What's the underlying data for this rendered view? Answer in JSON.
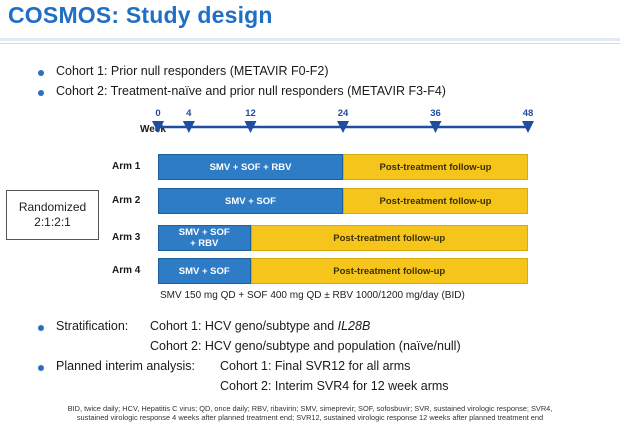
{
  "title": "COSMOS: Study design",
  "bullets": {
    "cohort1": "Cohort 1: Prior null responders (METAVIR F0-F2)",
    "cohort2": "Cohort 2: Treatment-naïve and prior null responders (METAVIR F3-F4)"
  },
  "timeline": {
    "label": "Week",
    "ticks": [
      "0",
      "4",
      "12",
      "24",
      "36",
      "48"
    ],
    "color": "#1f4ea0"
  },
  "arms": [
    {
      "label": "Arm 1",
      "treatment": "SMV + SOF + RBV",
      "followup": "Post-treatment follow-up",
      "treatment_weeks": 24
    },
    {
      "label": "Arm 2",
      "treatment": "SMV + SOF",
      "followup": "Post-treatment follow-up",
      "treatment_weeks": 24
    },
    {
      "label": "Arm 3",
      "treatment_line1": "SMV + SOF",
      "treatment_line2": "+ RBV",
      "followup": "Post-treatment follow-up",
      "treatment_weeks": 12
    },
    {
      "label": "Arm 4",
      "treatment": "SMV + SOF",
      "followup": "Post-treatment follow-up",
      "treatment_weeks": 12
    }
  ],
  "randomized": {
    "line1": "Randomized",
    "line2": "2:1:2:1"
  },
  "dosing": "SMV 150 mg QD + SOF 400 mg QD ± RBV 1000/1200 mg/day (BID)",
  "stratification": {
    "label": "Stratification:",
    "cohort1_prefix": "Cohort 1: HCV geno/subtype and ",
    "cohort1_italic": "IL28B",
    "cohort2": "Cohort 2: HCV geno/subtype and population (naïve/null)"
  },
  "interim": {
    "label": "Planned interim analysis:",
    "cohort1": "Cohort 1: Final SVR12 for all arms",
    "cohort2": "Cohort 2: Interim SVR4 for 12 week arms"
  },
  "footnote": {
    "line1": "BID, twice daily; HCV, Hepatitis C virus; QD, once daily; RBV, ribavirin; SMV, simeprevir; SOF, sofosbuvir; SVR, sustained virologic response; SVR4,",
    "line2": "sustained virologic response 4 weeks after planned treatment end; SVR12, sustained virologic response 12 weeks after planned treatment end"
  },
  "colors": {
    "title": "#1f6fc5",
    "treatment": "#2f7cc6",
    "followup": "#f5c51b",
    "bullet": "#2b6fc2"
  }
}
